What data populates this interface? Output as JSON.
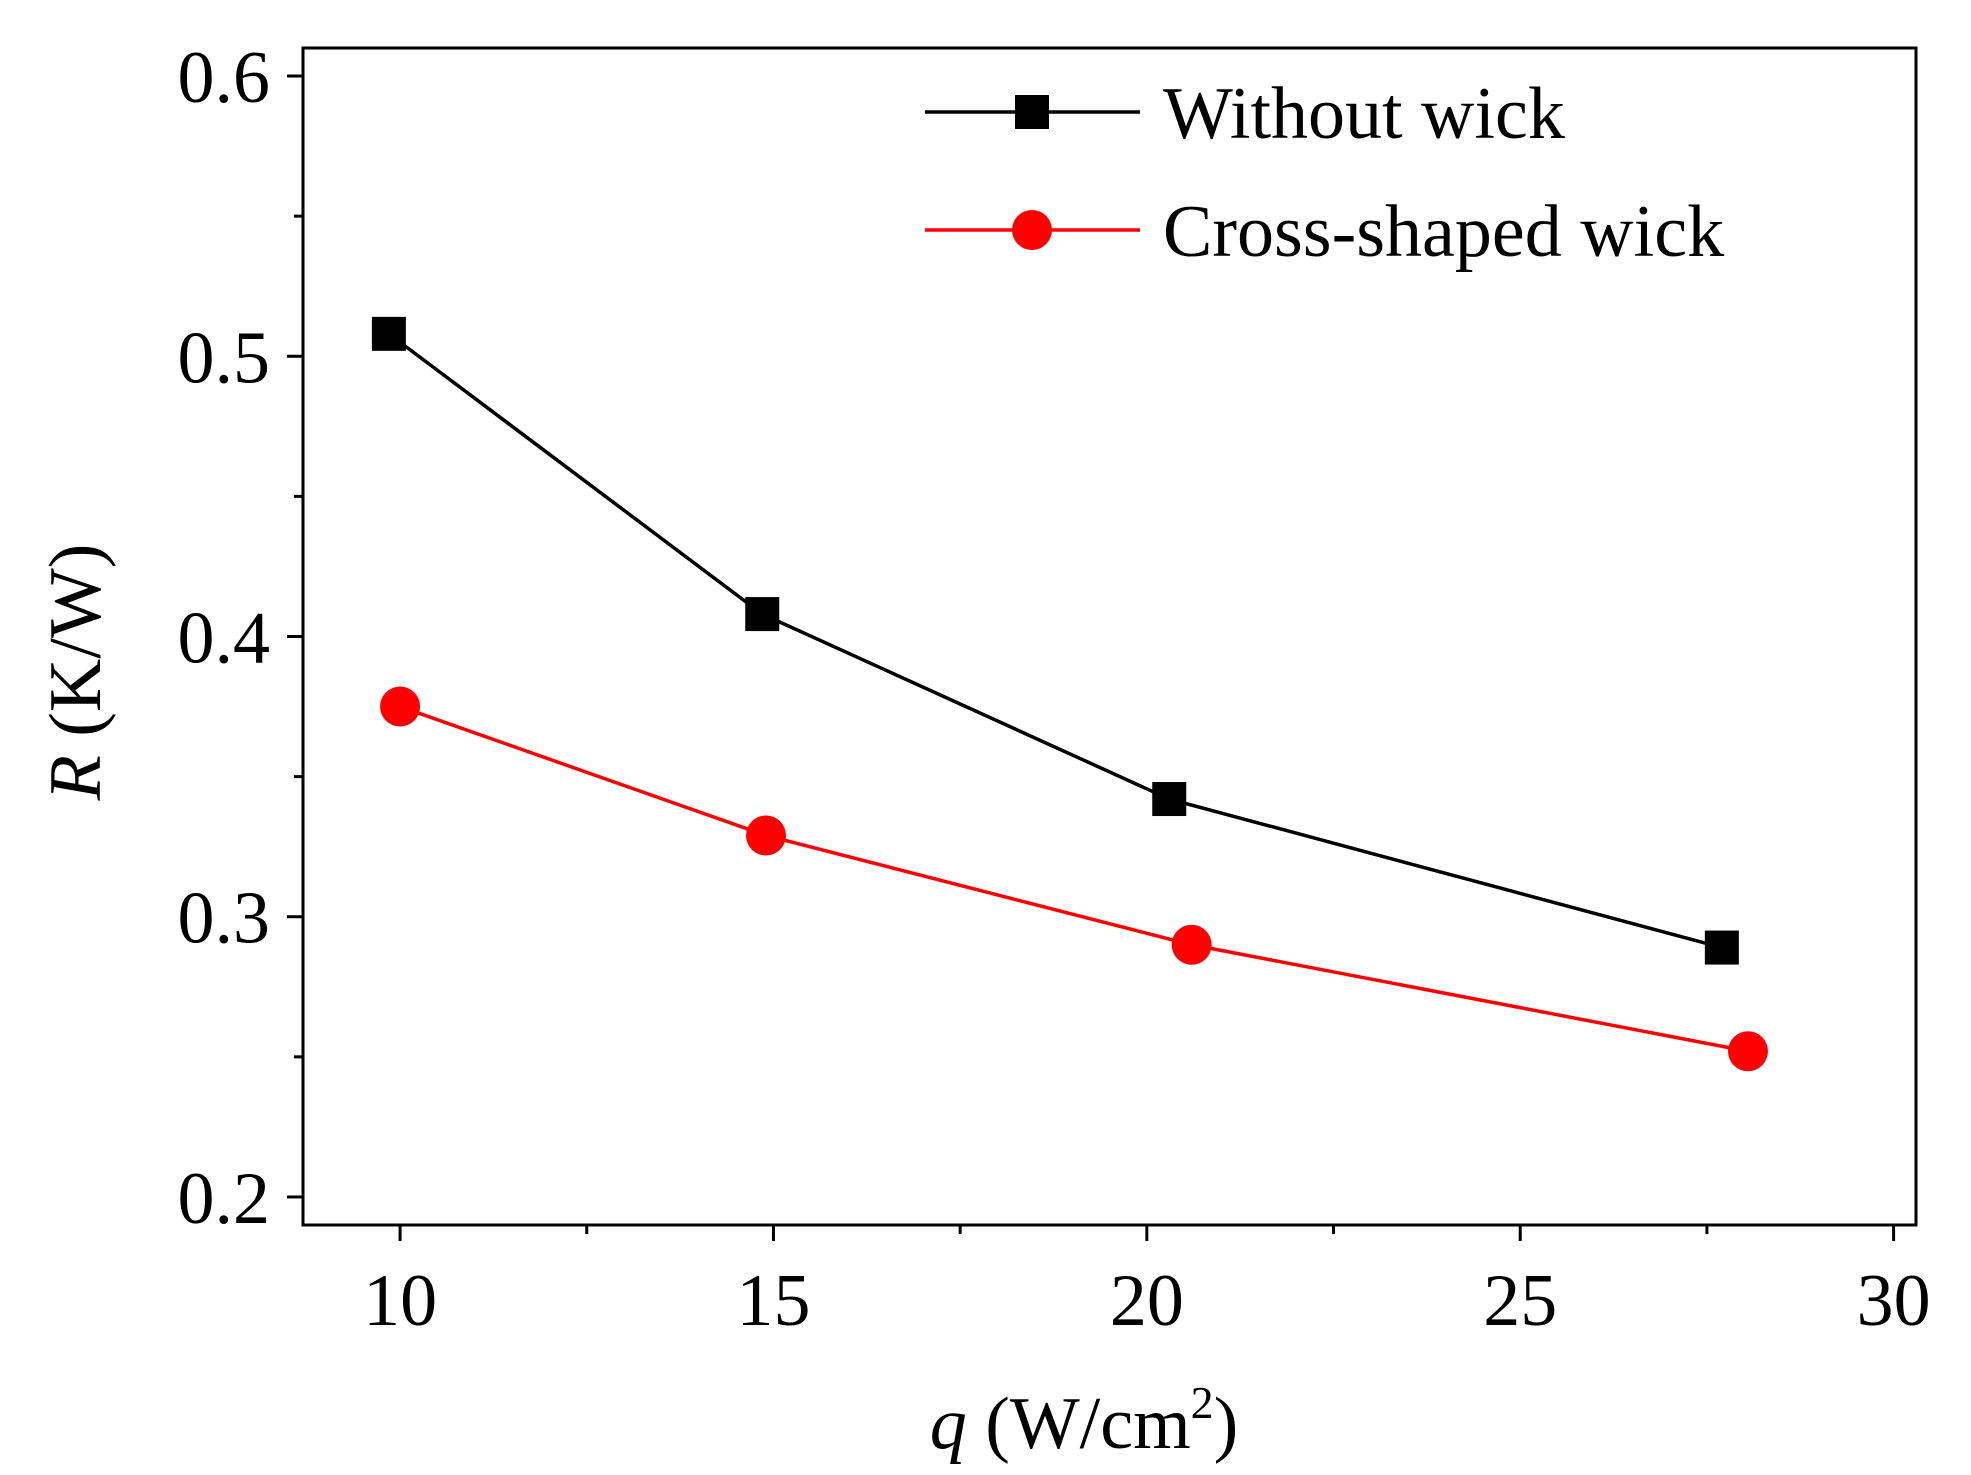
{
  "chart_data": {
    "type": "line",
    "title": "",
    "xlabel": {
      "var": "q",
      "unit_prefix": " (W/cm",
      "unit_sup": "2",
      "unit_suffix": ")"
    },
    "ylabel": {
      "var": "R",
      "unit": " (K/W)"
    },
    "xlim": [
      8.7,
      30.3
    ],
    "ylim": [
      0.19,
      0.61
    ],
    "xticks": [
      10,
      15,
      20,
      25,
      30
    ],
    "xtick_labels": [
      "10",
      "15",
      "20",
      "25",
      "30"
    ],
    "xminor": [
      12.5,
      17.5,
      22.5,
      27.5
    ],
    "yticks": [
      0.2,
      0.3,
      0.4,
      0.5,
      0.6
    ],
    "ytick_labels": [
      "0.2",
      "0.3",
      "0.4",
      "0.5",
      "0.6"
    ],
    "yminor": [
      0.25,
      0.35,
      0.45,
      0.55
    ],
    "grid": false,
    "legend_position": "top-right",
    "series": [
      {
        "name": "Without wick",
        "color": "#000000",
        "marker": "square",
        "x": [
          9.85,
          14.85,
          20.3,
          27.7
        ],
        "y": [
          0.508,
          0.408,
          0.342,
          0.289
        ]
      },
      {
        "name": "Cross-shaped wick",
        "color": "#ff0000",
        "marker": "circle",
        "x": [
          10.0,
          14.9,
          20.6,
          28.05
        ],
        "y": [
          0.375,
          0.329,
          0.29,
          0.252
        ]
      }
    ]
  }
}
